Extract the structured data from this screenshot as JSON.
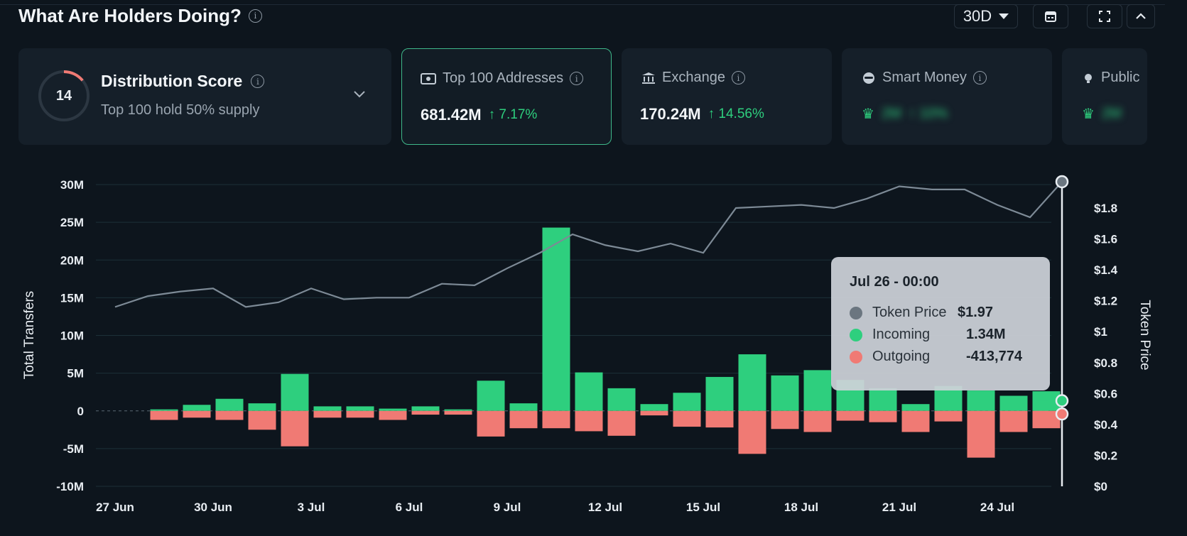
{
  "header": {
    "title": "What Are Holders Doing?",
    "period": "30D"
  },
  "cards": {
    "distribution": {
      "score": "14",
      "title": "Distribution Score",
      "subtitle": "Top 100 hold 50% supply",
      "score_fraction": 0.14
    },
    "top100": {
      "title": "Top 100 Addresses",
      "value": "681.42M",
      "change": "↑ 7.17%"
    },
    "exchange": {
      "title": "Exchange",
      "value": "170.24M",
      "change": "↑ 14.56%"
    },
    "smart_money": {
      "title": "Smart Money",
      "value": "2M",
      "change": "↑ 10%"
    },
    "public": {
      "title": "Public",
      "value": "2M"
    }
  },
  "tooltip": {
    "title": "Jul 26 - 00:00",
    "rows": [
      {
        "label": "Token Price",
        "value": "$1.97",
        "color": "#6b7680"
      },
      {
        "label": "Incoming",
        "value": "1.34M",
        "color": "#2ecf7e"
      },
      {
        "label": "Outgoing",
        "value": "-413,774",
        "color": "#f07a74"
      }
    ]
  },
  "colors": {
    "incoming": "#2ecf7e",
    "outgoing": "#f07a74",
    "price": "#7d8a96",
    "accent": "#3fb88a"
  },
  "chart_data": {
    "type": "bar",
    "title": "",
    "xlabel": "",
    "ylabel": "Total Transfers",
    "y2label": "Token Price",
    "ylim": [
      -10000000,
      30000000
    ],
    "y2lim": [
      0,
      1.8
    ],
    "yticks": [
      "30M",
      "25M",
      "20M",
      "15M",
      "10M",
      "5M",
      "0",
      "-5M",
      "-10M"
    ],
    "y2ticks": [
      "$1.8",
      "$1.6",
      "$1.4",
      "$1.2",
      "$1",
      "$0.8",
      "$0.6",
      "$0.4",
      "$0.2",
      "$0"
    ],
    "xticks": [
      "27 Jun",
      "30 Jun",
      "3 Jul",
      "6 Jul",
      "9 Jul",
      "12 Jul",
      "15 Jul",
      "18 Jul",
      "21 Jul",
      "24 Jul"
    ],
    "categories": [
      "27 Jun",
      "28 Jun",
      "29 Jun",
      "30 Jun",
      "1 Jul",
      "2 Jul",
      "3 Jul",
      "4 Jul",
      "5 Jul",
      "6 Jul",
      "7 Jul",
      "8 Jul",
      "9 Jul",
      "10 Jul",
      "11 Jul",
      "12 Jul",
      "13 Jul",
      "14 Jul",
      "15 Jul",
      "16 Jul",
      "17 Jul",
      "18 Jul",
      "19 Jul",
      "20 Jul",
      "21 Jul",
      "22 Jul",
      "23 Jul",
      "24 Jul",
      "25 Jul",
      "26 Jul"
    ],
    "series": [
      {
        "name": "Incoming",
        "type": "bar",
        "values": [
          0,
          200000,
          800000,
          1600000,
          1000000,
          4900000,
          600000,
          600000,
          300000,
          600000,
          200000,
          4000000,
          1000000,
          24300000,
          5100000,
          3000000,
          900000,
          2400000,
          4500000,
          7500000,
          4700000,
          5400000,
          4100000,
          3000000,
          900000,
          3300000,
          2700000,
          2000000,
          2600000,
          1340000
        ]
      },
      {
        "name": "Outgoing",
        "type": "bar",
        "values": [
          0,
          -1200000,
          -900000,
          -1200000,
          -2500000,
          -4700000,
          -900000,
          -900000,
          -1200000,
          -500000,
          -500000,
          -3400000,
          -2300000,
          -2300000,
          -2700000,
          -3300000,
          -600000,
          -2100000,
          -2200000,
          -5700000,
          -2400000,
          -2800000,
          -1300000,
          -1500000,
          -2800000,
          -1400000,
          -6200000,
          -2800000,
          -2300000,
          -413774
        ]
      },
      {
        "name": "Token Price",
        "type": "line",
        "values": [
          1.16,
          1.23,
          1.26,
          1.28,
          1.16,
          1.19,
          1.28,
          1.21,
          1.22,
          1.22,
          1.31,
          1.3,
          1.41,
          1.51,
          1.63,
          1.56,
          1.52,
          1.57,
          1.51,
          1.8,
          1.81,
          1.82,
          1.8,
          1.86,
          1.94,
          1.92,
          1.92,
          1.82,
          1.74,
          1.97
        ]
      }
    ]
  }
}
